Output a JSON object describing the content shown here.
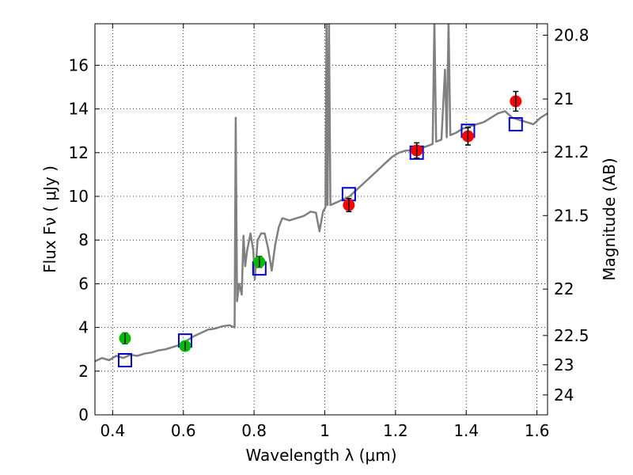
{
  "chart_data": {
    "type": "scatter",
    "xlabel": "Wavelength  λ (μm)",
    "ylabel": "Flux  Fν  ( μJy )",
    "ylabel2": "Magnitude (AB)",
    "xlim": [
      0.35,
      1.63
    ],
    "ylim": [
      0,
      17.9
    ],
    "x_ticks": [
      {
        "v": 0.4,
        "label": "0.4"
      },
      {
        "v": 0.6,
        "label": "0.6"
      },
      {
        "v": 0.8,
        "label": "0.8"
      },
      {
        "v": 1.0,
        "label": "1"
      },
      {
        "v": 1.2,
        "label": "1.2"
      },
      {
        "v": 1.4,
        "label": "1.4"
      },
      {
        "v": 1.6,
        "label": "1.6"
      }
    ],
    "y_ticks": [
      {
        "v": 0,
        "label": "0"
      },
      {
        "v": 2,
        "label": "2"
      },
      {
        "v": 4,
        "label": "4"
      },
      {
        "v": 6,
        "label": "6"
      },
      {
        "v": 8,
        "label": "8"
      },
      {
        "v": 10,
        "label": "10"
      },
      {
        "v": 12,
        "label": "12"
      },
      {
        "v": 14,
        "label": "14"
      },
      {
        "v": 16,
        "label": "16"
      }
    ],
    "mag_ticks": [
      {
        "label": "20.8",
        "mag": 20.8
      },
      {
        "label": "21",
        "mag": 21.0
      },
      {
        "label": "21.2",
        "mag": 21.2
      },
      {
        "label": "21.5",
        "mag": 21.5
      },
      {
        "label": "22",
        "mag": 22.0
      },
      {
        "label": "22.5",
        "mag": 22.5
      },
      {
        "label": "23",
        "mag": 23.0
      },
      {
        "label": "24",
        "mag": 24.0
      }
    ],
    "grid": true,
    "colors": {
      "spectrum": "#808080",
      "model": "#0000cc",
      "optical": "#00bb00",
      "nir": "#ff0000",
      "errorbar": "#000000"
    },
    "series": [
      {
        "kind": "line",
        "points": [
          [
            0.35,
            2.45
          ],
          [
            0.37,
            2.6
          ],
          [
            0.39,
            2.5
          ],
          [
            0.41,
            2.7
          ],
          [
            0.43,
            2.6
          ],
          [
            0.45,
            2.75
          ],
          [
            0.47,
            2.7
          ],
          [
            0.49,
            2.8
          ],
          [
            0.51,
            2.85
          ],
          [
            0.53,
            2.95
          ],
          [
            0.55,
            3.0
          ],
          [
            0.57,
            3.1
          ],
          [
            0.59,
            3.2
          ],
          [
            0.61,
            3.4
          ],
          [
            0.63,
            3.6
          ],
          [
            0.65,
            3.75
          ],
          [
            0.67,
            3.9
          ],
          [
            0.69,
            3.95
          ],
          [
            0.71,
            4.05
          ],
          [
            0.73,
            4.1
          ],
          [
            0.745,
            4.0
          ],
          [
            0.748,
            13.6
          ],
          [
            0.752,
            5.2
          ],
          [
            0.758,
            6.0
          ],
          [
            0.765,
            5.5
          ],
          [
            0.77,
            8.2
          ],
          [
            0.775,
            6.8
          ],
          [
            0.78,
            7.5
          ],
          [
            0.79,
            8.3
          ],
          [
            0.798,
            7.5
          ],
          [
            0.802,
            6.2
          ],
          [
            0.81,
            8.0
          ],
          [
            0.82,
            8.3
          ],
          [
            0.83,
            8.3
          ],
          [
            0.84,
            7.6
          ],
          [
            0.85,
            6.6
          ],
          [
            0.86,
            7.8
          ],
          [
            0.87,
            8.6
          ],
          [
            0.88,
            9.0
          ],
          [
            0.9,
            8.9
          ],
          [
            0.92,
            9.0
          ],
          [
            0.94,
            9.1
          ],
          [
            0.96,
            9.3
          ],
          [
            0.975,
            9.25
          ],
          [
            0.985,
            8.4
          ],
          [
            0.995,
            9.3
          ],
          [
            1.002,
            9.5
          ],
          [
            1.005,
            18.0
          ],
          [
            1.008,
            9.6
          ],
          [
            1.012,
            18.0
          ],
          [
            1.016,
            9.6
          ],
          [
            1.03,
            9.7
          ],
          [
            1.05,
            9.85
          ],
          [
            1.07,
            10.0
          ],
          [
            1.09,
            10.3
          ],
          [
            1.11,
            10.6
          ],
          [
            1.13,
            10.9
          ],
          [
            1.15,
            11.2
          ],
          [
            1.17,
            11.5
          ],
          [
            1.19,
            11.8
          ],
          [
            1.21,
            12.0
          ],
          [
            1.23,
            12.1
          ],
          [
            1.25,
            12.1
          ],
          [
            1.27,
            12.2
          ],
          [
            1.29,
            12.3
          ],
          [
            1.305,
            12.4
          ],
          [
            1.31,
            18.0
          ],
          [
            1.315,
            12.5
          ],
          [
            1.33,
            12.6
          ],
          [
            1.34,
            15.8
          ],
          [
            1.345,
            12.7
          ],
          [
            1.35,
            18.0
          ],
          [
            1.355,
            12.8
          ],
          [
            1.37,
            12.9
          ],
          [
            1.39,
            13.1
          ],
          [
            1.41,
            13.2
          ],
          [
            1.43,
            13.3
          ],
          [
            1.45,
            13.4
          ],
          [
            1.47,
            13.6
          ],
          [
            1.49,
            13.8
          ],
          [
            1.51,
            13.9
          ],
          [
            1.53,
            13.6
          ],
          [
            1.55,
            13.5
          ],
          [
            1.57,
            13.4
          ],
          [
            1.59,
            13.3
          ],
          [
            1.61,
            13.6
          ],
          [
            1.63,
            13.8
          ]
        ]
      },
      {
        "kind": "squares",
        "points": [
          [
            0.435,
            2.5
          ],
          [
            0.605,
            3.4
          ],
          [
            0.815,
            6.7
          ],
          [
            1.068,
            10.1
          ],
          [
            1.26,
            12.0
          ],
          [
            1.405,
            13.0
          ],
          [
            1.54,
            13.3
          ]
        ]
      },
      {
        "kind": "circles",
        "color_key": "optical",
        "points": [
          {
            "x": 0.435,
            "y": 3.5,
            "err": 0.25
          },
          {
            "x": 0.605,
            "y": 3.15,
            "err": 0.2
          },
          {
            "x": 0.815,
            "y": 7.0,
            "err": 0.25
          }
        ]
      },
      {
        "kind": "circles",
        "color_key": "nir",
        "points": [
          {
            "x": 1.068,
            "y": 9.6,
            "err": 0.3
          },
          {
            "x": 1.26,
            "y": 12.1,
            "err": 0.35
          },
          {
            "x": 1.405,
            "y": 12.75,
            "err": 0.4
          },
          {
            "x": 1.54,
            "y": 14.35,
            "err": 0.45
          }
        ]
      }
    ]
  }
}
